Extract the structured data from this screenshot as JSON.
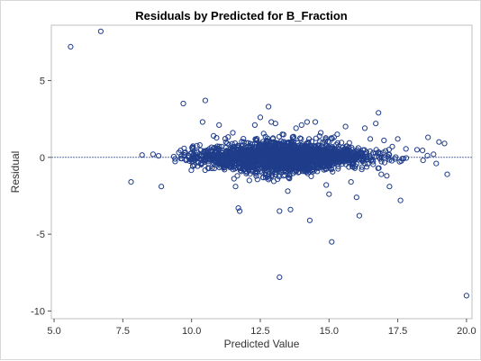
{
  "chart_data": {
    "type": "scatter",
    "title": "Residuals by Predicted for B_Fraction",
    "xlabel": "Predicted Value",
    "ylabel": "Residual",
    "xlim": [
      4.9,
      20.2
    ],
    "ylim": [
      -10.5,
      8.6
    ],
    "x_ticks": [
      5.0,
      7.5,
      10.0,
      12.5,
      15.0,
      17.5,
      20.0
    ],
    "x_tick_labels": [
      "5.0",
      "7.5",
      "10.0",
      "12.5",
      "15.0",
      "17.5",
      "20.0"
    ],
    "y_ticks": [
      -10,
      -5,
      0,
      5
    ],
    "y_tick_labels": [
      "-10",
      "-5",
      "0",
      "5"
    ],
    "reference_line_y": 0,
    "grid": false,
    "legend": "none",
    "marker": "open-circle",
    "colors": {
      "marker": "#1f3d8a",
      "reference_line": "#5b6fa8",
      "frame": "#bfbfbf"
    },
    "points": [
      [
        5.6,
        7.2
      ],
      [
        6.7,
        8.2
      ],
      [
        7.8,
        -1.6
      ],
      [
        8.2,
        0.15
      ],
      [
        8.6,
        0.2
      ],
      [
        8.8,
        0.1
      ],
      [
        8.9,
        -1.9
      ],
      [
        9.4,
        -0.1
      ],
      [
        9.6,
        0.45
      ],
      [
        9.7,
        3.5
      ],
      [
        9.8,
        -0.2
      ],
      [
        9.9,
        0.1
      ],
      [
        10.0,
        0.3
      ],
      [
        10.1,
        -0.5
      ],
      [
        10.3,
        0.8
      ],
      [
        10.4,
        2.3
      ],
      [
        10.5,
        3.7
      ],
      [
        10.6,
        -0.7
      ],
      [
        10.8,
        1.4
      ],
      [
        11.0,
        2.1
      ],
      [
        11.2,
        -0.8
      ],
      [
        11.3,
        0.9
      ],
      [
        11.5,
        1.6
      ],
      [
        11.6,
        -1.9
      ],
      [
        11.7,
        -3.3
      ],
      [
        11.75,
        -3.5
      ],
      [
        11.9,
        1.0
      ],
      [
        12.1,
        -1.5
      ],
      [
        12.3,
        2.1
      ],
      [
        12.5,
        2.6
      ],
      [
        12.6,
        -1.3
      ],
      [
        12.8,
        3.3
      ],
      [
        12.9,
        2.3
      ],
      [
        13.0,
        -0.6
      ],
      [
        13.05,
        2.2
      ],
      [
        13.2,
        -7.8
      ],
      [
        13.2,
        -3.5
      ],
      [
        13.3,
        1.5
      ],
      [
        13.5,
        -2.2
      ],
      [
        13.6,
        -3.4
      ],
      [
        13.8,
        1.9
      ],
      [
        14.0,
        2.1
      ],
      [
        14.2,
        2.3
      ],
      [
        14.3,
        -4.1
      ],
      [
        14.5,
        2.3
      ],
      [
        14.7,
        1.6
      ],
      [
        14.9,
        -1.8
      ],
      [
        15.0,
        -2.4
      ],
      [
        15.1,
        -5.5
      ],
      [
        15.3,
        1.5
      ],
      [
        15.6,
        2.0
      ],
      [
        15.8,
        -1.6
      ],
      [
        16.0,
        -2.6
      ],
      [
        16.1,
        -3.8
      ],
      [
        16.3,
        1.9
      ],
      [
        16.5,
        1.2
      ],
      [
        16.7,
        2.2
      ],
      [
        16.8,
        2.9
      ],
      [
        16.9,
        -1.1
      ],
      [
        17.0,
        1.1
      ],
      [
        17.1,
        -1.2
      ],
      [
        17.2,
        -1.9
      ],
      [
        17.3,
        0.7
      ],
      [
        17.4,
        -0.1
      ],
      [
        17.5,
        1.2
      ],
      [
        17.6,
        -2.8
      ],
      [
        17.8,
        0.55
      ],
      [
        18.2,
        0.5
      ],
      [
        18.4,
        0.45
      ],
      [
        18.6,
        1.3
      ],
      [
        18.8,
        0.2
      ],
      [
        18.9,
        -0.4
      ],
      [
        19.0,
        1.0
      ],
      [
        19.2,
        0.9
      ],
      [
        19.3,
        -1.1
      ],
      [
        20.0,
        -9.0
      ]
    ],
    "dense_cloud": {
      "description_free": true,
      "count": 2200,
      "x_range": [
        9.3,
        18.8
      ],
      "x_center": 13.3,
      "y_spread": 0.55
    }
  }
}
